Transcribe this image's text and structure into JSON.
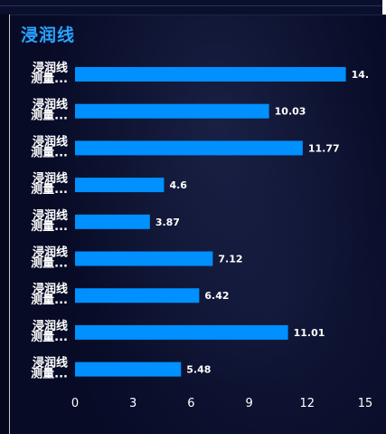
{
  "title": "浸润线",
  "chart_data": {
    "type": "bar",
    "orientation": "horizontal",
    "title": "浸润线",
    "categories": [
      [
        "浸润线",
        "测量..."
      ],
      [
        "浸润线",
        "测量..."
      ],
      [
        "浸润线",
        "测量..."
      ],
      [
        "浸润线",
        "测量..."
      ],
      [
        "浸润线",
        "测量..."
      ],
      [
        "浸润线",
        "测量..."
      ],
      [
        "浸润线",
        "测量..."
      ],
      [
        "浸润线",
        "测量..."
      ],
      [
        "浸润线",
        "测量..."
      ]
    ],
    "values": [
      14.0,
      10.03,
      11.77,
      4.6,
      3.87,
      7.12,
      6.42,
      11.01,
      5.48
    ],
    "value_labels": [
      "14.",
      "10.03",
      "11.77",
      "4.6",
      "3.87",
      "7.12",
      "6.42",
      "11.01",
      "5.48"
    ],
    "xlim": [
      0,
      15
    ],
    "xticks": [
      "0",
      "3",
      "6",
      "9",
      "12",
      "15"
    ],
    "bar_color": "#0090ff",
    "grid": false,
    "legend": "none"
  },
  "colors": {
    "background": "#060a22",
    "title": "#2aa3ff",
    "text": "#ffffff"
  }
}
